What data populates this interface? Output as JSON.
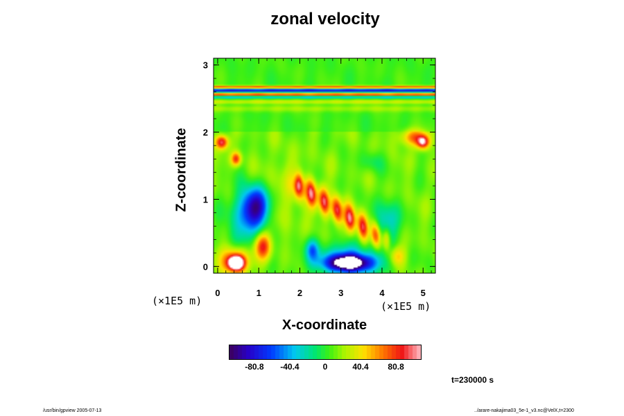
{
  "chart_data": {
    "type": "heatmap",
    "title": "zonal velocity",
    "xlabel": "X-coordinate",
    "ylabel": "Z-coordinate",
    "x_unit": "(×1E5 m)",
    "y_unit": "(×1E5 m)",
    "xlim": [
      -0.1,
      5.3
    ],
    "ylim": [
      -0.1,
      3.1
    ],
    "x_ticks": [
      "0",
      "1",
      "2",
      "3",
      "4",
      "5"
    ],
    "y_ticks": [
      "0",
      "1",
      "2",
      "3"
    ],
    "colorbar": {
      "range": [
        -109.2,
        109.2
      ],
      "tick_labels": [
        "-80.8",
        "-40.4",
        "0",
        "40.4",
        "80.8"
      ],
      "tick_values": [
        -80.8,
        -40.4,
        0,
        40.4,
        80.8
      ]
    },
    "features": [
      {
        "x": 3.2,
        "z": 0.05,
        "sx": 0.55,
        "sz": 0.12,
        "value": -115
      },
      {
        "x": 3.2,
        "z": 0.1,
        "sx": 0.9,
        "sz": 0.25,
        "value": -55
      },
      {
        "x": 0.95,
        "z": 0.9,
        "sx": 0.35,
        "sz": 0.28,
        "value": -95
      },
      {
        "x": 0.65,
        "z": 0.6,
        "sx": 0.4,
        "sz": 0.5,
        "value": -40
      },
      {
        "x": 0.45,
        "z": 0.05,
        "sx": 0.18,
        "sz": 0.1,
        "value": 125
      },
      {
        "x": 0.45,
        "z": 0.1,
        "sx": 0.35,
        "sz": 0.2,
        "value": 80
      },
      {
        "x": 1.1,
        "z": 0.3,
        "sx": 0.2,
        "sz": 0.2,
        "value": 75
      },
      {
        "x": 0.1,
        "z": 1.85,
        "sx": 0.15,
        "sz": 0.1,
        "value": 90
      },
      {
        "x": 5.0,
        "z": 1.85,
        "sx": 0.15,
        "sz": 0.1,
        "value": 90
      },
      {
        "x": 4.75,
        "z": 1.92,
        "sx": 0.3,
        "sz": 0.12,
        "value": 55
      },
      {
        "x": 0.45,
        "z": 1.6,
        "sx": 0.12,
        "sz": 0.1,
        "value": 70
      },
      {
        "x": 4.1,
        "z": 0.65,
        "sx": 0.3,
        "sz": 0.3,
        "value": -50
      },
      {
        "x": 2.3,
        "z": 0.25,
        "sx": 0.15,
        "sz": 0.15,
        "value": -45
      },
      {
        "x": 4.35,
        "z": 0.15,
        "sx": 0.2,
        "sz": 0.15,
        "value": 45
      },
      {
        "x": 3.75,
        "z": 1.55,
        "sx": 0.25,
        "sz": 0.15,
        "value": -20
      },
      {
        "x": 1.6,
        "z": 1.1,
        "sx": 0.5,
        "sz": 0.5,
        "value": 15
      }
    ],
    "ridge": {
      "from": [
        2.0,
        1.2
      ],
      "to": [
        4.0,
        0.4
      ],
      "width": 0.18,
      "value": 78
    },
    "bands": [
      {
        "z": 2.62,
        "width": 0.025,
        "value": -90
      },
      {
        "z": 2.67,
        "width": 0.02,
        "value": 70
      },
      {
        "z": 2.56,
        "width": 0.02,
        "value": 80
      },
      {
        "z": 2.52,
        "width": 0.02,
        "value": -40
      },
      {
        "z": 2.45,
        "width": 0.03,
        "value": 25
      },
      {
        "z": 2.35,
        "width": 0.05,
        "value": 15
      }
    ]
  },
  "time_label": "t=230000 s",
  "footer": {
    "left": "/usr/bin/gpview 2005-07-13",
    "right": "../arare-nakajima03_5e-1_v3.nc@VelX,t=2300"
  }
}
